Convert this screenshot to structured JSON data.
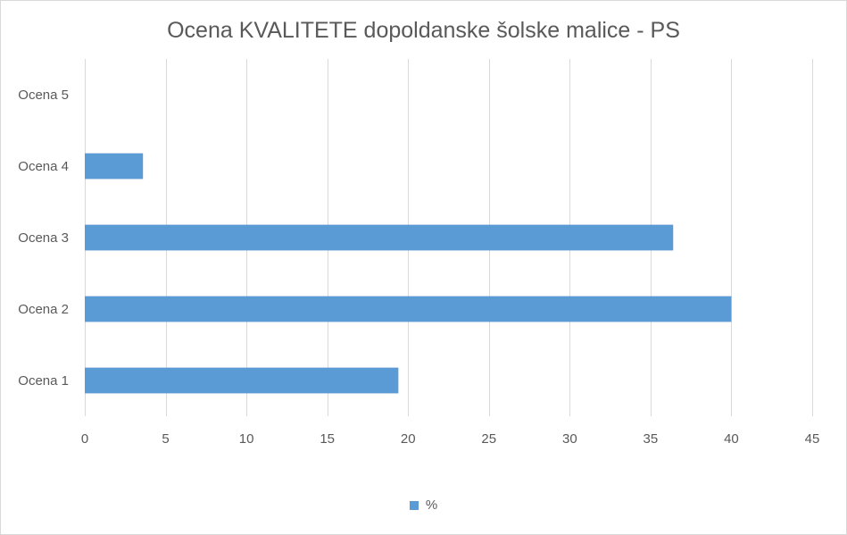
{
  "chart_data": {
    "type": "bar",
    "orientation": "horizontal",
    "title": "Ocena KVALITETE dopoldanske šolske malice - PS",
    "xlabel": "",
    "ylabel": "",
    "categories": [
      "Ocena 1",
      "Ocena 2",
      "Ocena 3",
      "Ocena 4",
      "Ocena 5"
    ],
    "series": [
      {
        "name": "%",
        "values": [
          19.4,
          40.0,
          36.4,
          3.6,
          0
        ],
        "color": "#5b9bd5"
      }
    ],
    "xlim": [
      0,
      45
    ],
    "xticks": [
      0,
      5,
      10,
      15,
      20,
      25,
      30,
      35,
      40,
      45
    ],
    "grid": "vertical",
    "legend": "bottom"
  }
}
